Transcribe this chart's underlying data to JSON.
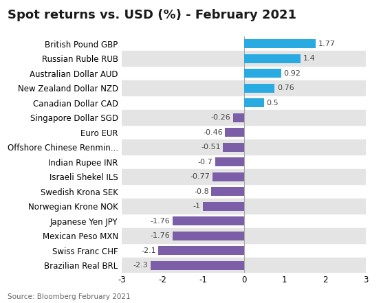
{
  "title": "Spot returns vs. USD (%) - February 2021",
  "source": "Source: Bloomberg February 2021",
  "categories": [
    "British Pound GBP",
    "Russian Ruble RUB",
    "Australian Dollar AUD",
    "New Zealand Dollar NZD",
    "Canadian Dollar CAD",
    "Singapore Dollar SGD",
    "Euro EUR",
    "Offshore Chinese Renmin...",
    "Indian Rupee INR",
    "Israeli Shekel ILS",
    "Swedish Krona SEK",
    "Norwegian Krone NOK",
    "Japanese Yen JPY",
    "Mexican Peso MXN",
    "Swiss Franc CHF",
    "Brazilian Real BRL"
  ],
  "values": [
    1.77,
    1.4,
    0.92,
    0.76,
    0.5,
    -0.26,
    -0.46,
    -0.51,
    -0.7,
    -0.77,
    -0.8,
    -1.0,
    -1.76,
    -1.76,
    -2.1,
    -2.3
  ],
  "value_labels": [
    "1.77",
    "1.4",
    "0.92",
    "0.76",
    "0.5",
    "-0.26",
    "-0.46",
    "-0.51",
    "-0.7",
    "-0.77",
    "-0.8",
    "-1",
    "-1.76",
    "-1.76",
    "-2.1",
    "-2.3"
  ],
  "color_positive": "#29ABE2",
  "color_negative": "#7B5EA7",
  "bg_color": "#FFFFFF",
  "row_alt_color": "#E4E4E4",
  "xlim": [
    -3,
    3
  ],
  "xticks": [
    -3,
    -2,
    -1,
    0,
    1,
    2,
    3
  ],
  "title_fontsize": 13,
  "label_fontsize": 8.5,
  "value_fontsize": 8,
  "source_fontsize": 7.5
}
